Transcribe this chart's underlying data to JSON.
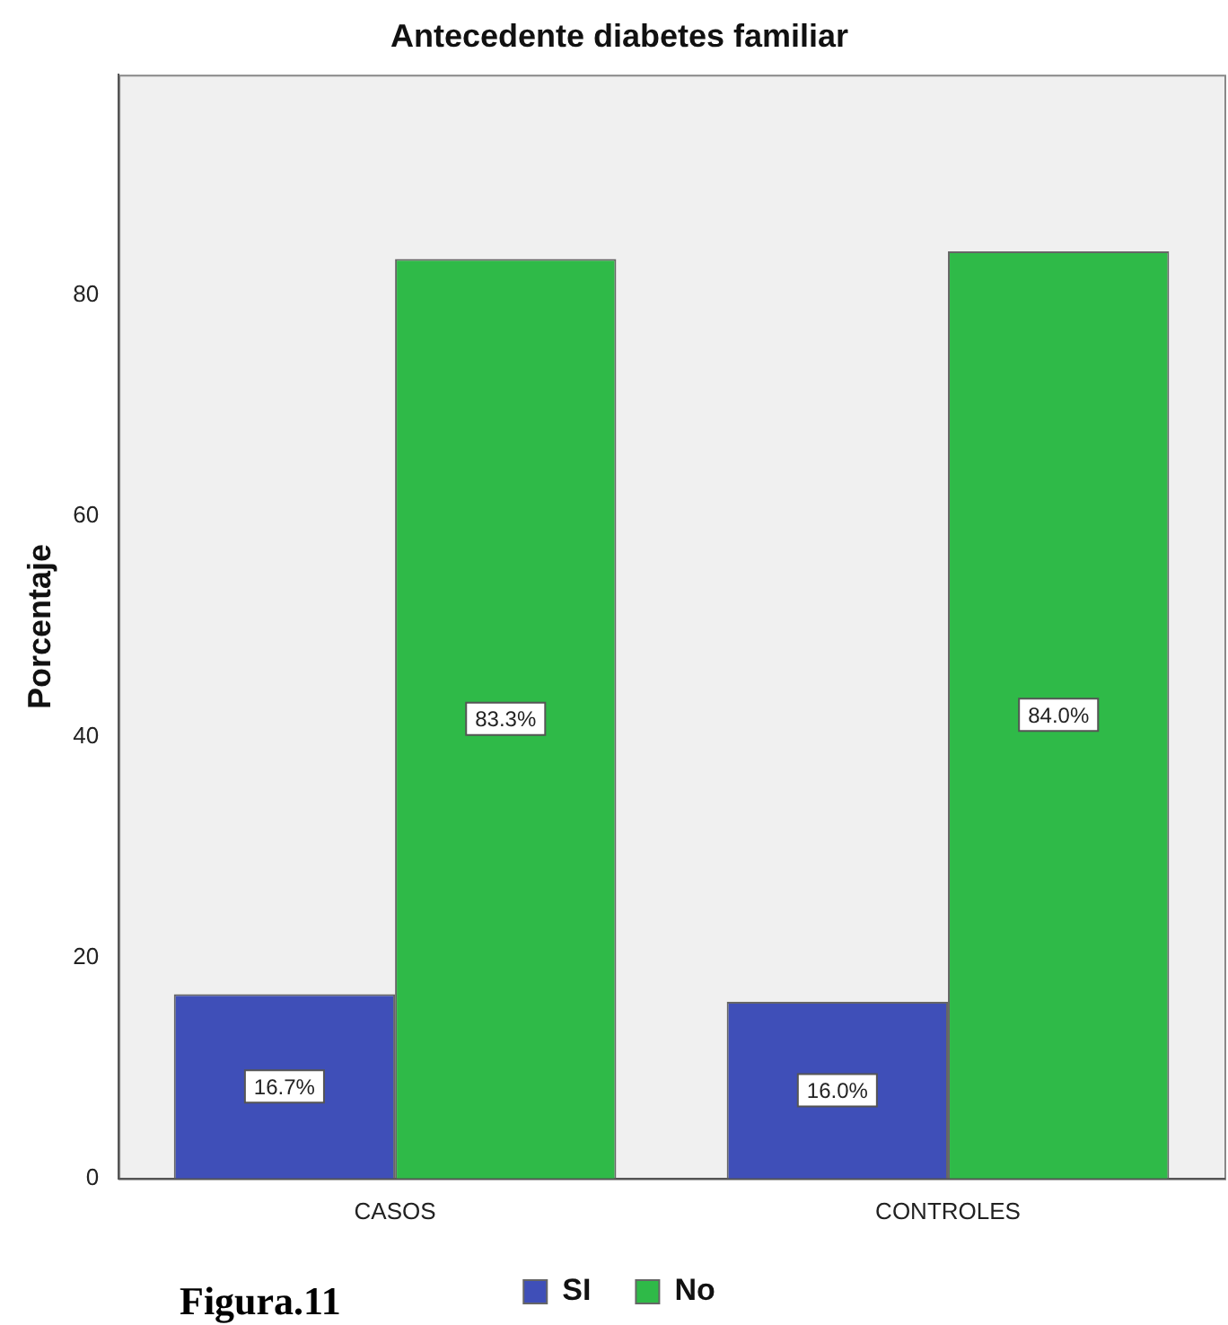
{
  "chart_data": {
    "type": "bar",
    "title": "Antecedente diabetes familiar",
    "ylabel": "Porcentaje",
    "categories": [
      "CASOS",
      "CONTROLES"
    ],
    "series": [
      {
        "name": "SI",
        "color": "#3f4fb8",
        "values": [
          16.7,
          16.0
        ],
        "value_labels": [
          "16.7%",
          "16.0%"
        ]
      },
      {
        "name": "No",
        "color": "#2fba48",
        "values": [
          83.3,
          84.0
        ],
        "value_labels": [
          "83.3%",
          "84.0%"
        ]
      }
    ],
    "ylim": [
      0,
      100
    ],
    "yticks": [
      0,
      20,
      40,
      60,
      80
    ],
    "grid": false,
    "legend": "bottom",
    "annotations": [
      "Figura.11"
    ]
  }
}
